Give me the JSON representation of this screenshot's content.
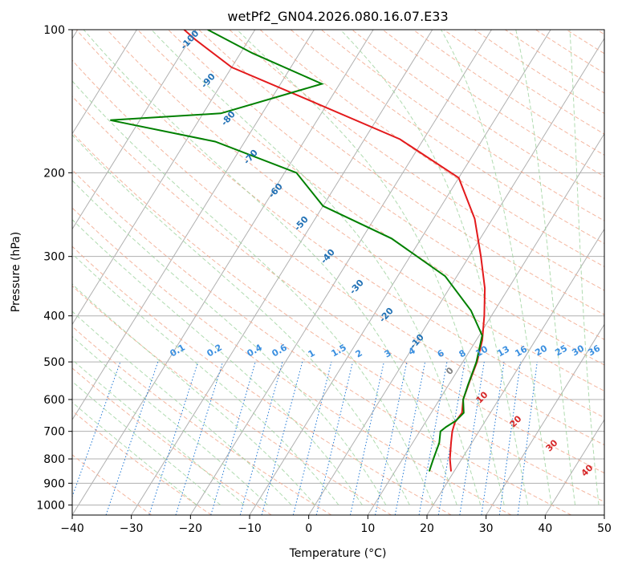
{
  "chart_data": {
    "type": "line",
    "title": "wetPf2_GN04.2026.080.16.07.E33",
    "xlabel": "Temperature (°C)",
    "ylabel": "Pressure (hPa)",
    "xlim": [
      -40,
      50
    ],
    "ylim": [
      1050,
      100
    ],
    "yscale": "log",
    "skew": true,
    "grid": true,
    "x_ticks": [
      -40,
      -30,
      -20,
      -10,
      0,
      10,
      20,
      30,
      40,
      50
    ],
    "y_ticks": [
      100,
      200,
      300,
      400,
      500,
      600,
      700,
      800,
      900,
      1000
    ],
    "series": [
      {
        "color": "#e31a1c",
        "points": [
          [
            19.5,
            850
          ],
          [
            18,
            800
          ],
          [
            16.5,
            740
          ],
          [
            15.5,
            700
          ],
          [
            15,
            670
          ],
          [
            15.2,
            640
          ],
          [
            14,
            600
          ],
          [
            13.2,
            550
          ],
          [
            12.4,
            500
          ],
          [
            11,
            450
          ],
          [
            8.8,
            400
          ],
          [
            6,
            350
          ],
          [
            2,
            300
          ],
          [
            -3,
            250
          ],
          [
            -10,
            205
          ],
          [
            -24,
            170
          ],
          [
            -44,
            140
          ],
          [
            -60,
            120
          ],
          [
            -69,
            105
          ],
          [
            -72,
            100
          ]
        ]
      },
      {
        "color": "#008000",
        "points": [
          [
            15.8,
            850
          ],
          [
            15.2,
            800
          ],
          [
            14.5,
            740
          ],
          [
            13.5,
            700
          ],
          [
            14,
            685
          ],
          [
            15,
            665
          ],
          [
            15.5,
            640
          ],
          [
            14,
            600
          ],
          [
            13.3,
            560
          ],
          [
            12.3,
            500
          ],
          [
            10.5,
            440
          ],
          [
            6,
            390
          ],
          [
            -2,
            330
          ],
          [
            -15,
            275
          ],
          [
            -30,
            235
          ],
          [
            -38,
            200
          ],
          [
            -55,
            172
          ],
          [
            -75,
            155
          ],
          [
            -57,
            150
          ],
          [
            -43,
            130
          ],
          [
            -58,
            112
          ],
          [
            -68,
            100
          ]
        ]
      }
    ],
    "dry_adiabats_label_values": [
      "-100",
      "-90",
      "-80",
      "-70",
      "-60",
      "-50",
      "-40",
      "-30",
      "-20",
      "-10"
    ],
    "mixing_ratio_labels": [
      "0.1",
      "0.2",
      "0.4",
      "0.6",
      "1",
      "1.5",
      "2",
      "3",
      "4",
      "6",
      "8",
      "10",
      "13",
      "16",
      "20",
      "25",
      "30",
      "36"
    ],
    "moist_adiabat_labels": [
      "0",
      "10",
      "20",
      "30",
      "40"
    ]
  }
}
